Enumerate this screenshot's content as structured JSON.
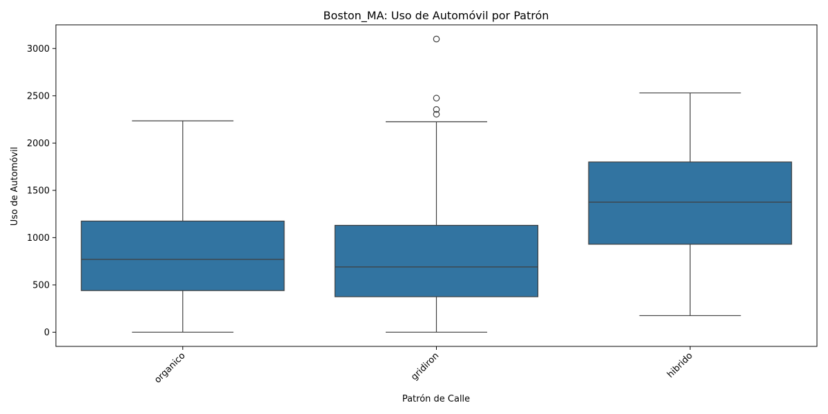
{
  "chart_data": {
    "type": "box",
    "title": "Boston_MA: Uso de Automóvil por Patrón",
    "xlabel": "Patrón de Calle",
    "ylabel": "Uso de Automóvil",
    "ylim": [
      -150,
      3250
    ],
    "yticks": [
      0,
      500,
      1000,
      1500,
      2000,
      2500,
      3000
    ],
    "grid": false,
    "color": "#3274a1",
    "categories": [
      "organico",
      "gridiron",
      "hibrido"
    ],
    "boxes": [
      {
        "category": "organico",
        "whisker_low": 0,
        "q1": 440,
        "median": 770,
        "q3": 1175,
        "whisker_high": 2235,
        "outliers": []
      },
      {
        "category": "gridiron",
        "whisker_low": 0,
        "q1": 375,
        "median": 690,
        "q3": 1130,
        "whisker_high": 2225,
        "outliers": [
          2305,
          2355,
          2475,
          3100
        ]
      },
      {
        "category": "hibrido",
        "whisker_low": 175,
        "q1": 930,
        "median": 1375,
        "q3": 1800,
        "whisker_high": 2530,
        "outliers": []
      }
    ]
  }
}
